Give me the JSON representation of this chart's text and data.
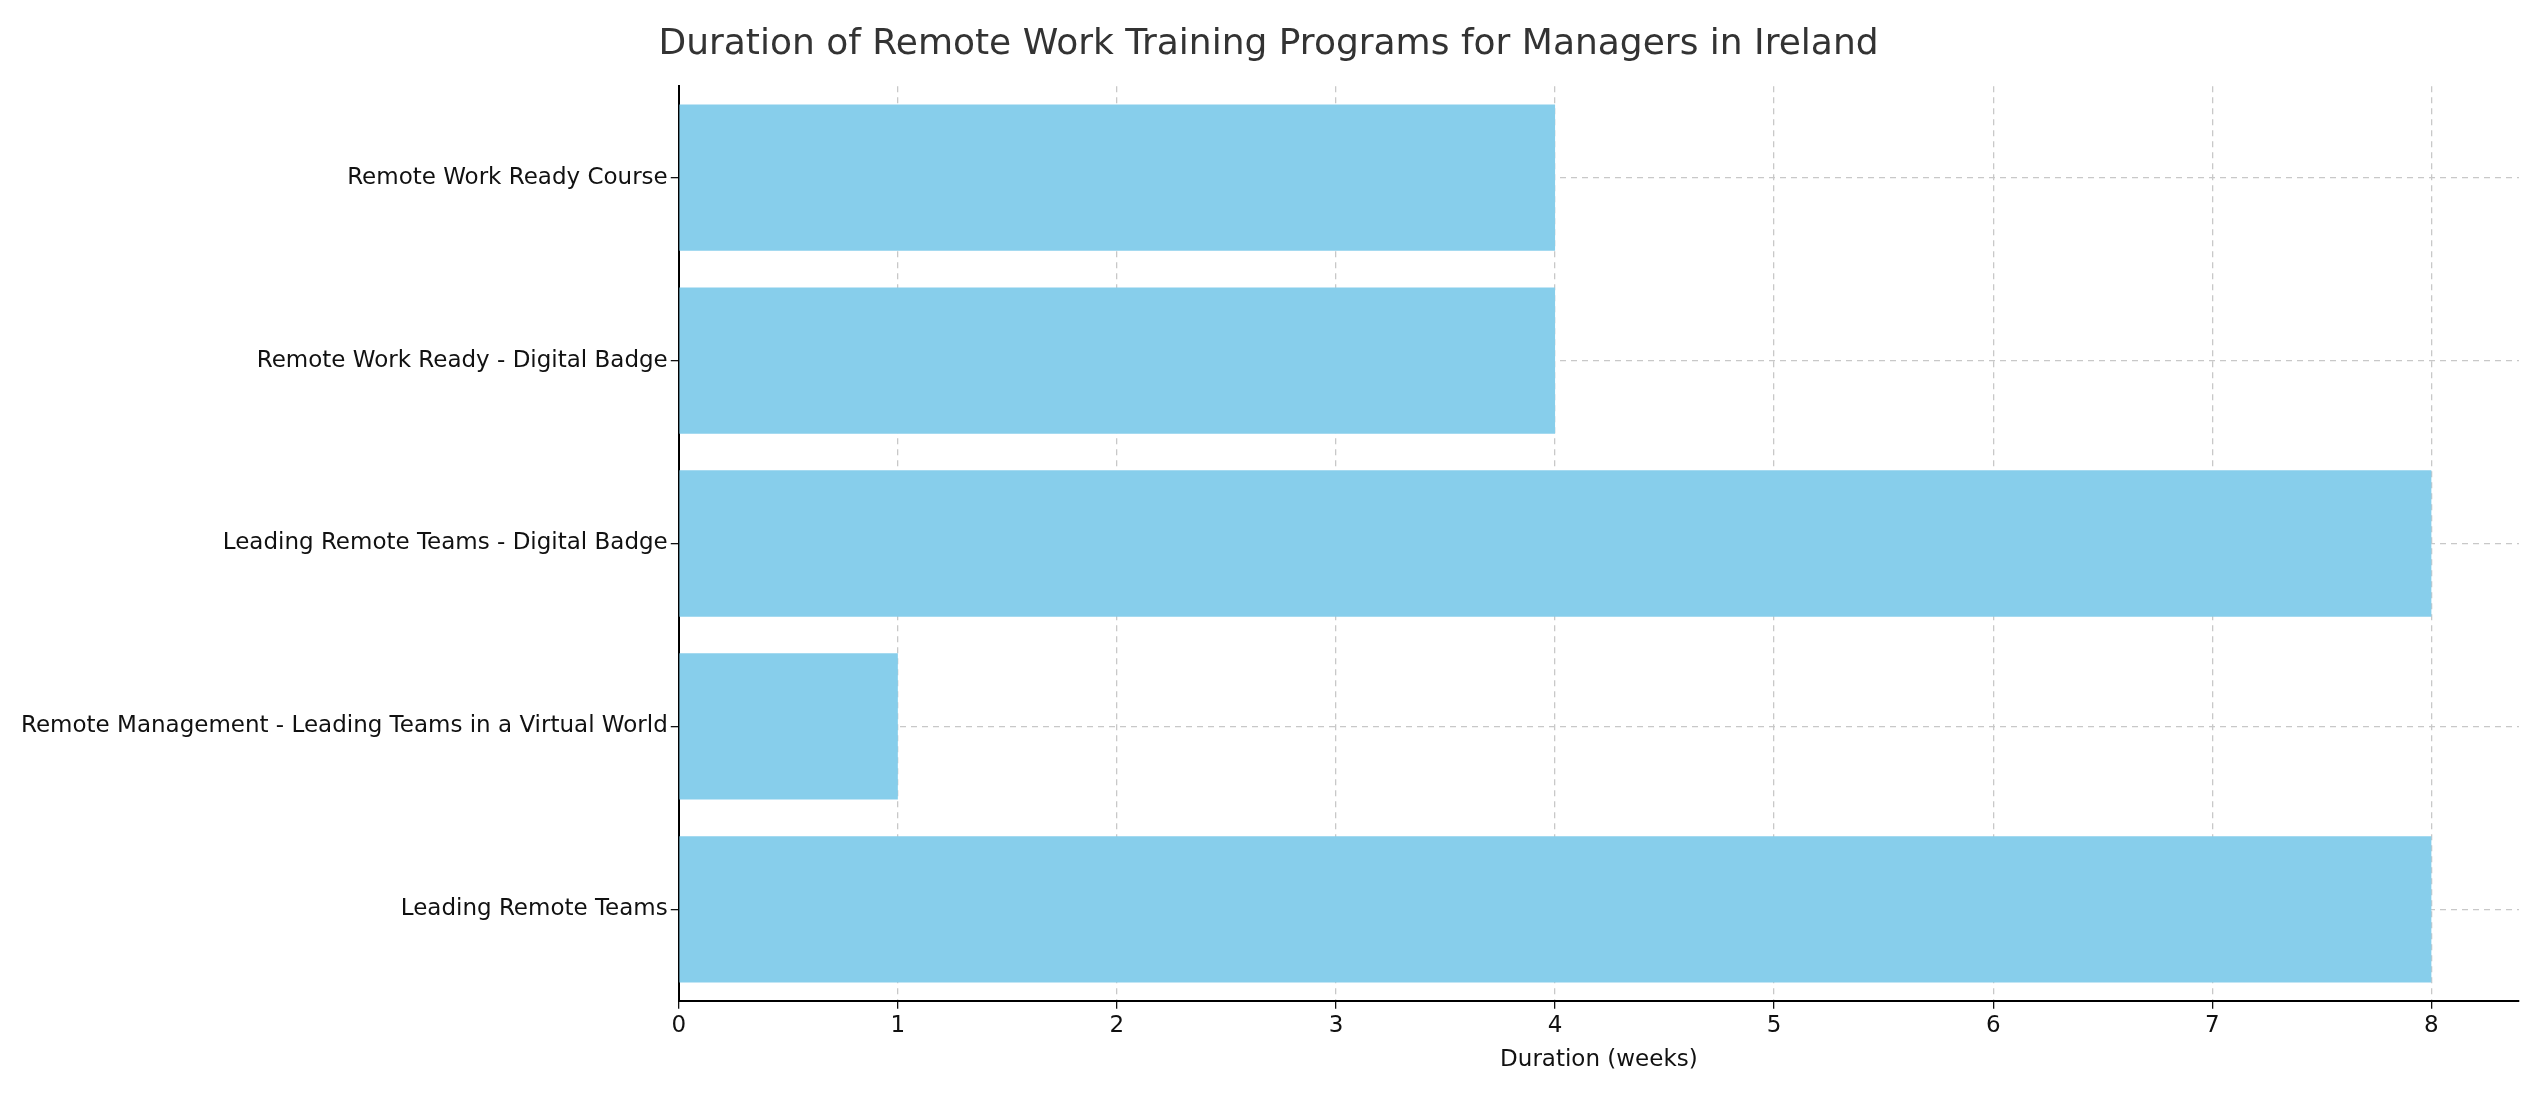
{
  "chart_data": {
    "type": "bar",
    "orientation": "horizontal",
    "title": "Duration of Remote Work Training Programs for Managers in Ireland",
    "xlabel": "Duration (weeks)",
    "categories": [
      "Remote Work Ready Course",
      "Remote Work Ready - Digital Badge",
      "Leading Remote Teams - Digital Badge",
      "Remote Management - Leading Teams in a Virtual World",
      "Leading Remote Teams"
    ],
    "values": [
      4,
      4,
      8,
      1,
      8
    ],
    "color": "#87ceeb",
    "xlim": [
      0,
      8.4
    ],
    "xticks": [
      0,
      1,
      2,
      3,
      4,
      5,
      6,
      7,
      8
    ],
    "grid": true,
    "legend": false
  }
}
